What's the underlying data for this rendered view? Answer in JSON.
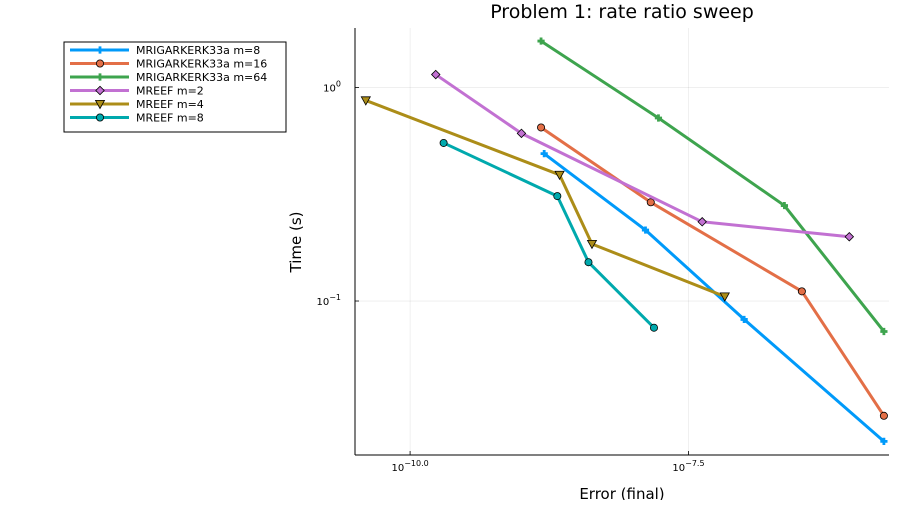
{
  "chart_data": {
    "type": "line",
    "title": "Problem 1: rate ratio sweep",
    "xlabel": "Error (final)",
    "ylabel": "Time (s)",
    "x_scale": "log10",
    "y_scale": "log10",
    "xlim": [
      3.2e-11,
      2e-06
    ],
    "ylim": [
      0.019,
      1.9
    ],
    "grid": true,
    "legend_position": "top-left (outside plot)",
    "x_ticks": [
      {
        "value": 1e-10,
        "base": "10",
        "exponent": "−10.0"
      },
      {
        "value": 3.1623e-08,
        "base": "10",
        "exponent": "−7.5"
      }
    ],
    "y_ticks": [
      {
        "value": 1.0,
        "base": "10",
        "exponent": "0"
      },
      {
        "value": 0.1,
        "base": "10",
        "exponent": "−1"
      }
    ],
    "series": [
      {
        "name": "MRIGARKERK33a m=8",
        "color": "#009AFA",
        "marker": "cross",
        "x": [
          1.6e-09,
          1.3e-08,
          1e-07,
          1.8e-06
        ],
        "y": [
          0.49,
          0.215,
          0.082,
          0.022
        ]
      },
      {
        "name": "MRIGARKERK33a m=16",
        "color": "#E36F47",
        "marker": "circle",
        "x": [
          1.5e-09,
          1.45e-08,
          3.3e-07,
          1.8e-06
        ],
        "y": [
          0.65,
          0.29,
          0.111,
          0.029
        ]
      },
      {
        "name": "MRIGARKERK33a m=64",
        "color": "#3EA44E",
        "marker": "cross",
        "x": [
          1.5e-09,
          1.7e-08,
          2.3e-07,
          1.8e-06
        ],
        "y": [
          1.65,
          0.72,
          0.28,
          0.072
        ]
      },
      {
        "name": "MREEF m=2",
        "color": "#C271D2",
        "marker": "diamond",
        "x": [
          1.7e-10,
          1e-09,
          4.2e-08,
          8.8e-07
        ],
        "y": [
          1.15,
          0.61,
          0.235,
          0.2
        ]
      },
      {
        "name": "MREEF m=4",
        "color": "#AC8D18",
        "marker": "triangle-down",
        "x": [
          4e-11,
          2.2e-09,
          4.3e-09,
          6.7e-08
        ],
        "y": [
          0.87,
          0.39,
          0.185,
          0.105
        ]
      },
      {
        "name": "MREEF m=8",
        "color": "#00A9AD",
        "marker": "circle",
        "x": [
          2e-10,
          2.1e-09,
          4e-09,
          1.55e-08
        ],
        "y": [
          0.55,
          0.31,
          0.152,
          0.075
        ]
      }
    ]
  }
}
